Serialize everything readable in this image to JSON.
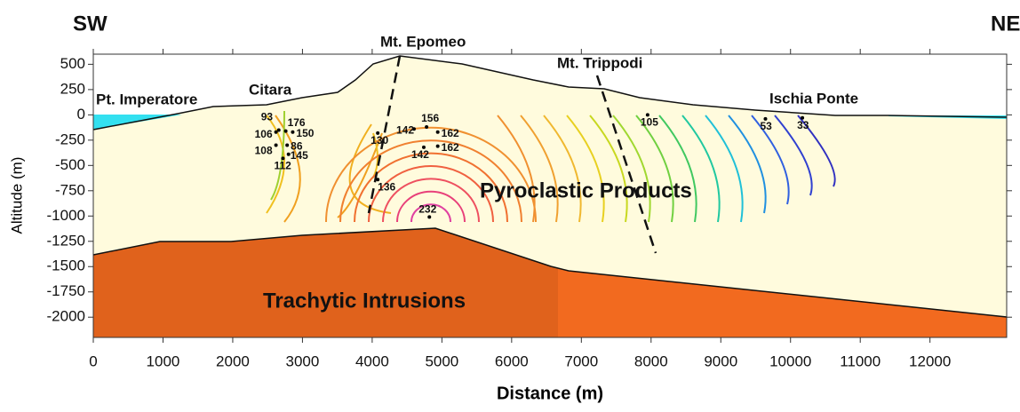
{
  "chart_data": {
    "type": "scatter",
    "direction_labels": [
      "SW",
      "NE"
    ],
    "xlabel": "Distance (m)",
    "ylabel": "Altitude (m)",
    "annotations": [
      "Pt. Imperatore",
      "Citara",
      "Mt. Epomeo",
      "Mt. Trippodi",
      "Ischia Ponte",
      "Pyroclastic Products",
      "Trachytic Intrusions"
    ],
    "xlim": [
      0,
      13100
    ],
    "ylim": [
      -2200,
      600
    ],
    "xticks": [
      0,
      1000,
      2000,
      3000,
      4000,
      5000,
      6000,
      7000,
      8000,
      9000,
      10000,
      11000,
      12000
    ],
    "yticks": [
      500,
      250,
      0,
      -250,
      -500,
      -750,
      -1000,
      -1250,
      -1500,
      -1750,
      -2000
    ],
    "series": [
      {
        "color": "#000000",
        "x": [
          2660,
          2620,
          2620,
          2760,
          2860,
          2780,
          2800,
          2720,
          4080,
          4080,
          4600,
          4780,
          4940,
          4740,
          4940,
          4820,
          7950,
          9640,
          10170
        ],
        "y": [
          -150,
          -170,
          -300,
          -160,
          -170,
          -300,
          -390,
          -430,
          -180,
          -640,
          -140,
          -120,
          -170,
          -320,
          -310,
          -1010,
          0,
          -40,
          -30
        ],
        "values": [
          93,
          106,
          108,
          176,
          150,
          86,
          145,
          112,
          130,
          136,
          142,
          156,
          162,
          142,
          162,
          232,
          105,
          53,
          33
        ]
      }
    ]
  }
}
